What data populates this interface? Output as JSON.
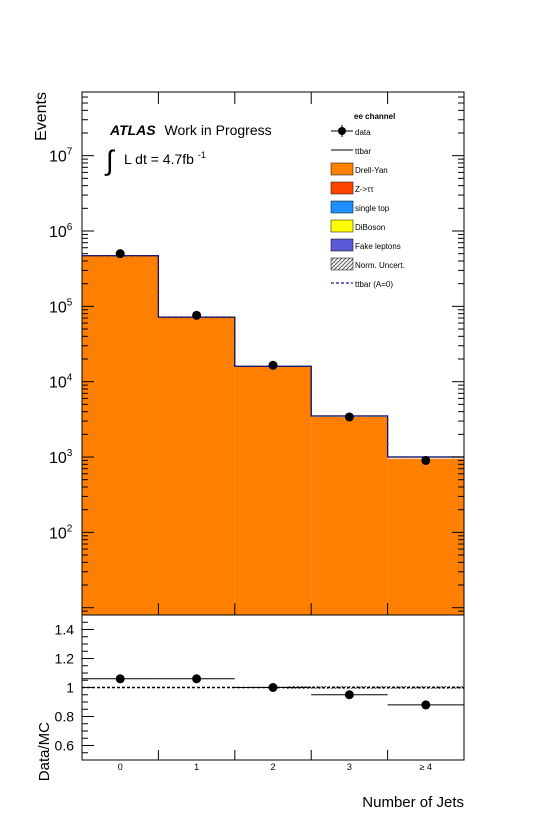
{
  "chart_data": [
    {
      "type": "bar",
      "panel": "main",
      "log_scale_y": true,
      "ylabel": "Events",
      "xlabel": "Number of Jets",
      "categories": [
        "0",
        "1",
        "2",
        "3",
        "≥ 4"
      ],
      "ylim": [
        8,
        70000000
      ],
      "y_tick_labels": [
        "10^2",
        "10^3",
        "10^4",
        "10^5",
        "10^6",
        "10^7"
      ],
      "annotation": {
        "atlas": "ATLAS",
        "status": "Work in Progress",
        "lumi_integral": "∫",
        "lumi_text": "L dt = 4.7fb",
        "lumi_exp": "-1"
      },
      "legend_title": "ee channel",
      "legend_placement": "top-right",
      "legend": [
        {
          "label": "data",
          "style": "marker",
          "color": "#000000"
        },
        {
          "label": "ttbar",
          "style": "line",
          "color": "#000000"
        },
        {
          "label": "Drell-Yan",
          "style": "box",
          "color": "#ff7f00"
        },
        {
          "label": "Z->ττ",
          "style": "box",
          "color": "#ff4500"
        },
        {
          "label": "single top",
          "style": "box",
          "color": "#1e90ff"
        },
        {
          "label": "DiBoson",
          "style": "box",
          "color": "#ffff00"
        },
        {
          "label": "Fake leptons",
          "style": "box",
          "color": "#5a5ad8"
        },
        {
          "label": "Norm. Uncert.",
          "style": "hatch",
          "color": "#555555"
        },
        {
          "label": "ttbar (A=0)",
          "style": "dashed",
          "color": "#1a1a9e"
        }
      ],
      "series": [
        {
          "name": "Drell-Yan",
          "values": [
            470000,
            72000,
            16000,
            3400,
            950
          ]
        },
        {
          "name": "ttbar (A=0)",
          "values": [
            470000,
            72000,
            16000,
            3500,
            1000
          ]
        },
        {
          "name": "data",
          "values": [
            500000,
            76000,
            16500,
            3400,
            900
          ]
        }
      ]
    },
    {
      "type": "scatter",
      "panel": "ratio",
      "ylabel": "Data/MC",
      "xlabel": "Number of Jets",
      "categories": [
        "0",
        "1",
        "2",
        "3",
        "≥ 4"
      ],
      "ylim": [
        0.5,
        1.5
      ],
      "y_ticks": [
        0.6,
        0.8,
        1,
        1.2,
        1.4
      ],
      "y_tick_labels": [
        "0.6",
        "0.8",
        "1",
        "1.2",
        "1.4"
      ],
      "reference_line": 1,
      "series": [
        {
          "name": "Data/MC",
          "values": [
            1.06,
            1.06,
            1.0,
            0.95,
            0.88
          ]
        }
      ]
    }
  ],
  "colors": {
    "drell_yan": "#ff7f00",
    "ttbar_a0_line": "#1a1a9e",
    "data_marker": "#000000",
    "frame": "#000000"
  }
}
